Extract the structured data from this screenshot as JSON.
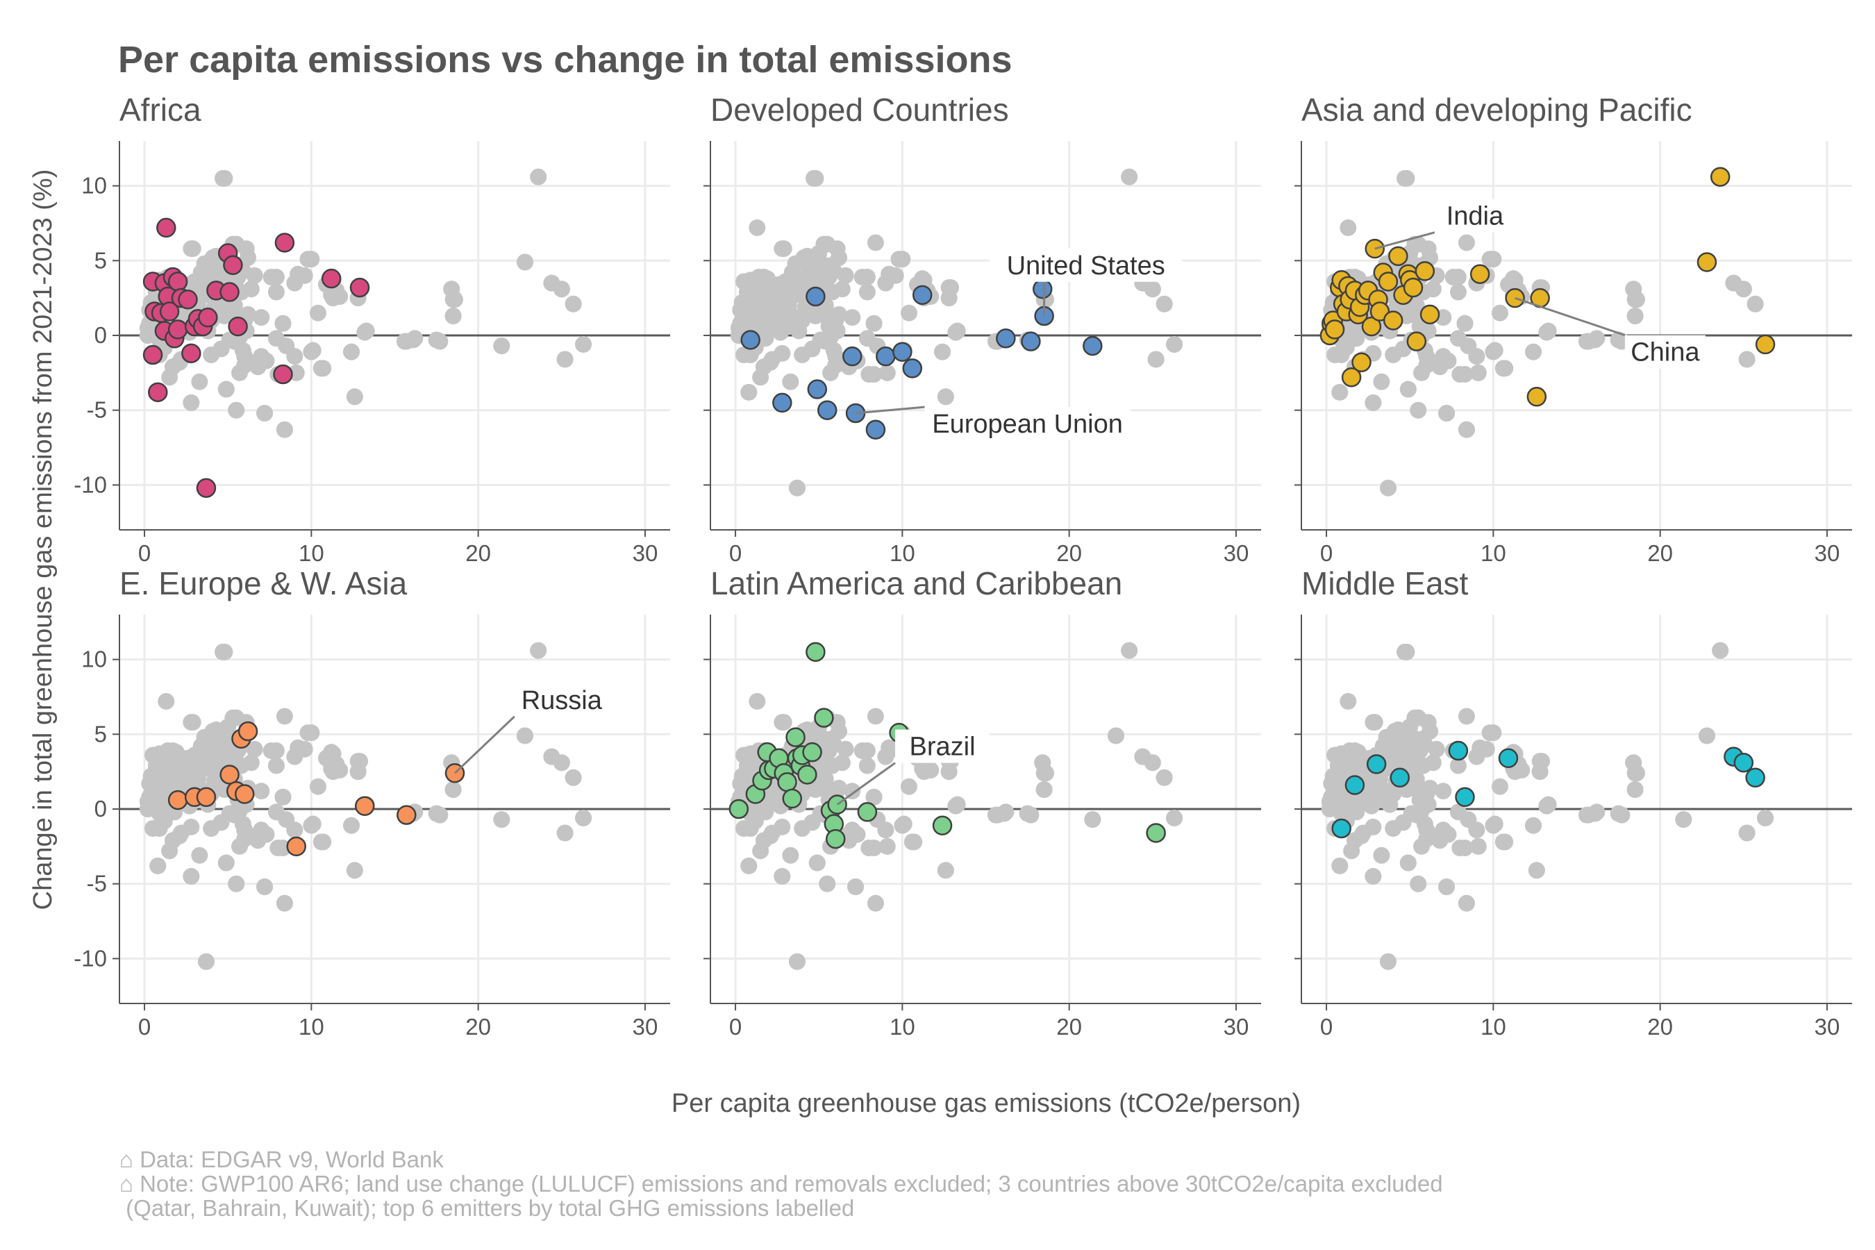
{
  "title": "Per capita emissions vs change in total emissions",
  "xlabel": "Per capita greenhouse gas emissions (tCO2e/person)",
  "ylabel": "Change in total greenhouse gas emissions from 2021-2023 (%)",
  "caption": [
    "⌂ Data: EDGAR v9, World Bank",
    "⌂ Note: GWP100 AR6; land use change (LULUCF) emissions and removals excluded; 3 countries above 30tCO2e/capita excluded",
    " (Qatar, Bahrain, Kuwait); top 6 emitters by total GHG emissions labelled"
  ],
  "x_ticks": [
    {
      "v": 0,
      "label": "0"
    },
    {
      "v": 10,
      "label": "10"
    },
    {
      "v": 20,
      "label": "20"
    },
    {
      "v": 30,
      "label": "30"
    }
  ],
  "y_ticks": [
    {
      "v": 10,
      "label": "10"
    },
    {
      "v": 5,
      "label": "5"
    },
    {
      "v": 0,
      "label": "0"
    },
    {
      "v": -5,
      "label": "-5"
    },
    {
      "v": -10,
      "label": "-10"
    }
  ],
  "colors": {
    "background_points": "#c4c4c4",
    "grid": "#ebebeb",
    "axis": "#555555",
    "point_outline": "#404040"
  },
  "chart_data": {
    "type": "scatter",
    "facets": [
      "Africa",
      "Developed Countries",
      "Asia and developing Pacific",
      "E. Europe & W. Asia",
      "Latin America and Caribbean",
      "Middle East"
    ],
    "xlim": [
      -1.5,
      31.5
    ],
    "ylim": [
      -13,
      13
    ],
    "grid": true,
    "background_note": "all countries shown in grey in every facet",
    "series": [
      {
        "name": "Africa",
        "color": "#d6497f",
        "points": [
          [
            0.5,
            3.6
          ],
          [
            0.6,
            1.6
          ],
          [
            0.5,
            -1.3
          ],
          [
            0.8,
            -3.8
          ],
          [
            1.0,
            1.5
          ],
          [
            1.2,
            3.5
          ],
          [
            1.2,
            0.3
          ],
          [
            1.3,
            7.2
          ],
          [
            1.4,
            2.6
          ],
          [
            1.5,
            1.6
          ],
          [
            1.7,
            3.9
          ],
          [
            1.8,
            -0.2
          ],
          [
            2.0,
            3.6
          ],
          [
            2.0,
            0.4
          ],
          [
            2.2,
            2.5
          ],
          [
            2.6,
            2.4
          ],
          [
            2.8,
            -1.2
          ],
          [
            3.0,
            0.6
          ],
          [
            3.2,
            1.1
          ],
          [
            3.5,
            0.6
          ],
          [
            3.7,
            -10.2
          ],
          [
            3.8,
            1.2
          ],
          [
            4.3,
            3.0
          ],
          [
            5.0,
            5.5
          ],
          [
            5.1,
            2.9
          ],
          [
            5.3,
            4.7
          ],
          [
            5.6,
            0.6
          ],
          [
            8.3,
            -2.6
          ],
          [
            8.4,
            6.2
          ],
          [
            11.2,
            3.8
          ],
          [
            12.9,
            3.2
          ]
        ]
      },
      {
        "name": "Developed Countries",
        "color": "#5b8ec6",
        "points": [
          [
            0.9,
            -0.3
          ],
          [
            2.8,
            -4.5
          ],
          [
            4.8,
            2.6
          ],
          [
            4.9,
            -3.6
          ],
          [
            5.5,
            -5.0
          ],
          [
            7.0,
            -1.4
          ],
          [
            7.2,
            -5.2
          ],
          [
            8.4,
            -6.3
          ],
          [
            9.0,
            -1.4
          ],
          [
            10.0,
            -1.1
          ],
          [
            10.6,
            -2.2
          ],
          [
            11.2,
            2.7
          ],
          [
            16.2,
            -0.2
          ],
          [
            17.7,
            -0.4
          ],
          [
            18.4,
            3.1
          ],
          [
            18.5,
            1.3
          ],
          [
            21.4,
            -0.7
          ]
        ],
        "labels": [
          {
            "text": "United States",
            "point": [
              18.5,
              1.3
            ],
            "label_at": [
              21,
              4.7
            ]
          },
          {
            "text": "European Union",
            "point": [
              7.2,
              -5.2
            ],
            "label_at": [
              17.5,
              -5.9
            ]
          }
        ]
      },
      {
        "name": "Asia and developing Pacific",
        "color": "#e6b325",
        "points": [
          [
            0.2,
            0.0
          ],
          [
            0.3,
            0.8
          ],
          [
            0.4,
            1.0
          ],
          [
            0.5,
            0.4
          ],
          [
            0.8,
            3.2
          ],
          [
            0.9,
            3.7
          ],
          [
            1.0,
            2.1
          ],
          [
            1.2,
            1.6
          ],
          [
            1.3,
            3.3
          ],
          [
            1.4,
            2.4
          ],
          [
            1.5,
            -2.8
          ],
          [
            1.7,
            3.0
          ],
          [
            1.9,
            1.4
          ],
          [
            2.0,
            1.9
          ],
          [
            2.1,
            -1.8
          ],
          [
            2.3,
            2.7
          ],
          [
            2.5,
            3.0
          ],
          [
            2.7,
            0.6
          ],
          [
            2.9,
            5.8
          ],
          [
            3.1,
            2.4
          ],
          [
            3.2,
            1.6
          ],
          [
            3.4,
            4.2
          ],
          [
            3.7,
            3.6
          ],
          [
            4.0,
            1.0
          ],
          [
            4.3,
            5.3
          ],
          [
            4.6,
            2.7
          ],
          [
            4.9,
            4.1
          ],
          [
            5.0,
            3.7
          ],
          [
            5.2,
            3.2
          ],
          [
            5.4,
            -0.4
          ],
          [
            5.9,
            4.3
          ],
          [
            6.2,
            1.4
          ],
          [
            9.2,
            4.1
          ],
          [
            11.3,
            2.5
          ],
          [
            12.6,
            -4.1
          ],
          [
            12.8,
            2.5
          ],
          [
            22.8,
            4.9
          ],
          [
            23.6,
            10.6
          ],
          [
            26.3,
            -0.6
          ]
        ],
        "labels": [
          {
            "text": "India",
            "point": [
              2.9,
              5.8
            ],
            "label_at": [
              8.9,
              8.0
            ]
          },
          {
            "text": "China",
            "point": [
              11.3,
              2.5
            ],
            "label_at": [
              20.3,
              -1.1
            ]
          }
        ]
      },
      {
        "name": "E. Europe & W. Asia",
        "color": "#f7935a",
        "points": [
          [
            2.0,
            0.6
          ],
          [
            3.0,
            0.8
          ],
          [
            3.7,
            0.8
          ],
          [
            5.1,
            2.3
          ],
          [
            5.5,
            1.2
          ],
          [
            5.8,
            4.7
          ],
          [
            6.0,
            1.0
          ],
          [
            6.2,
            5.2
          ],
          [
            9.1,
            -2.5
          ],
          [
            13.2,
            0.2
          ],
          [
            15.7,
            -0.4
          ],
          [
            18.6,
            2.4
          ]
        ],
        "labels": [
          {
            "text": "Russia",
            "point": [
              18.6,
              2.4
            ],
            "label_at": [
              25.0,
              7.3
            ]
          }
        ]
      },
      {
        "name": "Latin America and Caribbean",
        "color": "#7dcf8c",
        "points": [
          [
            0.2,
            0.0
          ],
          [
            1.2,
            1.0
          ],
          [
            1.6,
            1.9
          ],
          [
            1.9,
            3.8
          ],
          [
            2.0,
            2.6
          ],
          [
            2.3,
            2.7
          ],
          [
            2.6,
            3.4
          ],
          [
            2.9,
            2.4
          ],
          [
            3.1,
            1.8
          ],
          [
            3.4,
            0.7
          ],
          [
            3.6,
            4.8
          ],
          [
            3.7,
            3.4
          ],
          [
            3.9,
            2.9
          ],
          [
            4.0,
            3.6
          ],
          [
            4.3,
            2.3
          ],
          [
            4.6,
            3.8
          ],
          [
            4.8,
            10.5
          ],
          [
            5.3,
            6.1
          ],
          [
            5.7,
            -0.1
          ],
          [
            5.9,
            -1.0
          ],
          [
            6.0,
            -2.0
          ],
          [
            6.1,
            0.3
          ],
          [
            7.9,
            -0.2
          ],
          [
            9.8,
            5.1
          ],
          [
            12.4,
            -1.1
          ],
          [
            25.2,
            -1.6
          ]
        ],
        "labels": [
          {
            "text": "Brazil",
            "point": [
              6.1,
              0.3
            ],
            "label_at": [
              12.4,
              4.2
            ]
          }
        ]
      },
      {
        "name": "Middle East",
        "color": "#21bccc",
        "points": [
          [
            0.9,
            -1.3
          ],
          [
            1.7,
            1.6
          ],
          [
            3.0,
            3.0
          ],
          [
            4.4,
            2.1
          ],
          [
            7.9,
            3.9
          ],
          [
            8.3,
            0.8
          ],
          [
            10.9,
            3.4
          ],
          [
            24.4,
            3.5
          ],
          [
            25.0,
            3.1
          ],
          [
            25.7,
            2.1
          ]
        ]
      }
    ],
    "background_extra": [
      [
        0.2,
        0.5
      ],
      [
        0.3,
        1.7
      ],
      [
        0.4,
        2.2
      ],
      [
        0.5,
        0.9
      ],
      [
        0.6,
        3.6
      ],
      [
        0.7,
        2.9
      ],
      [
        0.8,
        1.3
      ],
      [
        0.9,
        3.4
      ],
      [
        1.0,
        0.7
      ],
      [
        1.1,
        2.3
      ],
      [
        1.2,
        -0.8
      ],
      [
        1.4,
        3.9
      ],
      [
        1.5,
        0.9
      ],
      [
        1.6,
        2.1
      ],
      [
        1.7,
        -2.1
      ],
      [
        1.8,
        2.8
      ],
      [
        2.0,
        1.1
      ],
      [
        2.1,
        3.3
      ],
      [
        2.2,
        -1.6
      ],
      [
        2.4,
        1.7
      ],
      [
        2.5,
        3.0
      ],
      [
        2.7,
        0.2
      ],
      [
        2.8,
        5.8
      ],
      [
        2.9,
        1.4
      ],
      [
        3.0,
        3.6
      ],
      [
        3.2,
        2.0
      ],
      [
        3.3,
        -3.1
      ],
      [
        3.4,
        4.2
      ],
      [
        3.5,
        1.0
      ],
      [
        3.6,
        2.7
      ],
      [
        3.8,
        0.3
      ],
      [
        3.9,
        3.8
      ],
      [
        4.0,
        -1.3
      ],
      [
        4.1,
        5.2
      ],
      [
        4.2,
        1.9
      ],
      [
        4.4,
        4.6
      ],
      [
        4.5,
        2.5
      ],
      [
        4.6,
        -0.9
      ],
      [
        4.7,
        5.0
      ],
      [
        4.8,
        1.3
      ],
      [
        4.9,
        3.3
      ],
      [
        5.1,
        -0.3
      ],
      [
        5.2,
        4.0
      ],
      [
        5.4,
        2.0
      ],
      [
        5.5,
        6.1
      ],
      [
        5.6,
        3.9
      ],
      [
        5.7,
        -2.5
      ],
      [
        5.8,
        2.9
      ],
      [
        6.0,
        -1.4
      ],
      [
        6.1,
        5.8
      ],
      [
        6.3,
        -1.8
      ],
      [
        6.4,
        3.1
      ],
      [
        6.6,
        4.0
      ],
      [
        6.8,
        -2.1
      ],
      [
        7.0,
        1.2
      ],
      [
        7.3,
        -1.7
      ],
      [
        7.6,
        3.9
      ],
      [
        7.9,
        2.9
      ],
      [
        8.0,
        -2.6
      ],
      [
        8.3,
        0.8
      ],
      [
        8.5,
        -0.7
      ],
      [
        9.0,
        3.5
      ],
      [
        9.6,
        4.0
      ],
      [
        10.0,
        5.1
      ],
      [
        10.1,
        -1.0
      ],
      [
        10.4,
        1.5
      ],
      [
        10.7,
        -2.2
      ],
      [
        11.3,
        3.7
      ],
      [
        11.5,
        3.0
      ],
      [
        11.7,
        2.6
      ],
      [
        12.4,
        -1.1
      ],
      [
        12.8,
        3.2
      ],
      [
        12.8,
        2.5
      ],
      [
        13.3,
        0.3
      ],
      [
        15.6,
        -0.4
      ],
      [
        16.1,
        -0.3
      ],
      [
        17.5,
        -0.3
      ],
      [
        18.4,
        3.1
      ],
      [
        18.5,
        2.4
      ],
      [
        18.5,
        1.3
      ],
      [
        21.4,
        -0.7
      ],
      [
        22.8,
        4.9
      ],
      [
        23.6,
        10.6
      ],
      [
        24.4,
        3.5
      ],
      [
        25.0,
        3.1
      ],
      [
        25.2,
        -1.6
      ],
      [
        25.7,
        2.1
      ],
      [
        26.3,
        -0.6
      ],
      [
        4.7,
        10.5
      ],
      [
        3.7,
        -10.2
      ],
      [
        8.4,
        -6.3
      ],
      [
        7.2,
        -5.2
      ],
      [
        5.5,
        -5.0
      ],
      [
        4.9,
        -3.6
      ],
      [
        2.8,
        -4.5
      ],
      [
        0.8,
        -3.8
      ],
      [
        12.6,
        -4.1
      ],
      [
        9.1,
        -2.5
      ]
    ]
  }
}
